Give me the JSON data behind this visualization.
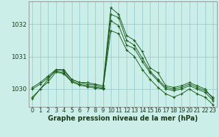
{
  "bg_color": "#cceee8",
  "grid_color": "#99cccc",
  "line_color": "#1a5c1a",
  "series1": [
    1029.7,
    1030.0,
    1030.3,
    1030.6,
    1030.6,
    1030.3,
    1030.2,
    1030.2,
    1030.15,
    1030.1,
    1032.5,
    1032.3,
    1031.65,
    1031.5,
    1031.15,
    1030.65,
    1030.5,
    1030.1,
    1030.05,
    1030.1,
    1030.2,
    1030.1,
    1030.0,
    1029.7
  ],
  "series2": [
    1030.05,
    1030.2,
    1030.4,
    1030.6,
    1030.55,
    1030.3,
    1030.2,
    1030.15,
    1030.12,
    1030.05,
    1032.3,
    1032.2,
    1031.5,
    1031.35,
    1030.95,
    1030.55,
    1030.3,
    1030.05,
    1030.0,
    1030.05,
    1030.15,
    1030.05,
    1029.95,
    1029.75
  ],
  "series3": [
    1030.0,
    1030.15,
    1030.35,
    1030.55,
    1030.5,
    1030.25,
    1030.15,
    1030.1,
    1030.07,
    1030.02,
    1032.1,
    1031.95,
    1031.35,
    1031.25,
    1030.85,
    1030.5,
    1030.25,
    1030.0,
    1029.95,
    1030.0,
    1030.1,
    1030.0,
    1029.9,
    1029.65
  ],
  "series4": [
    1029.75,
    1030.0,
    1030.22,
    1030.52,
    1030.47,
    1030.22,
    1030.12,
    1030.07,
    1030.03,
    1030.0,
    1031.8,
    1031.7,
    1031.2,
    1031.0,
    1030.6,
    1030.3,
    1030.05,
    1029.85,
    1029.75,
    1029.85,
    1030.0,
    1029.85,
    1029.75,
    1029.52
  ],
  "xlim": [
    -0.5,
    23.5
  ],
  "ylim": [
    1029.45,
    1032.7
  ],
  "yticks": [
    1030,
    1031,
    1032
  ],
  "xticks": [
    0,
    1,
    2,
    3,
    4,
    5,
    6,
    7,
    8,
    9,
    10,
    11,
    12,
    13,
    14,
    15,
    16,
    17,
    18,
    19,
    20,
    21,
    22,
    23
  ],
  "xlabel": "Graphe pression niveau de la mer (hPa)",
  "xlabel_fontsize": 7.0,
  "tick_fontsize": 6.0
}
